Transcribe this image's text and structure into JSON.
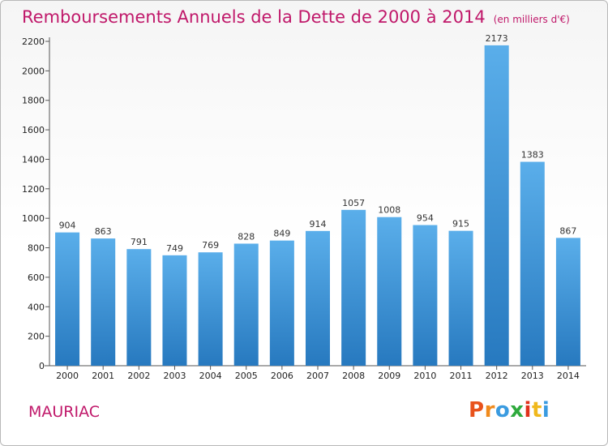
{
  "header": {
    "title": "Remboursements Annuels de la Dette de 2000 à 2014",
    "unit": "(en milliers d'€)"
  },
  "footer": {
    "commune": "MAURIAC",
    "logo": [
      "P",
      "r",
      "o",
      "x",
      "i",
      "t",
      "i"
    ]
  },
  "colors": {
    "title": "#c0186a",
    "bar_top": "#5aaeea",
    "bar_bottom": "#2779bf",
    "logo": [
      "#e8521c",
      "#f08a1c",
      "#3a9be0",
      "#2faa3d",
      "#e0321c",
      "#f0b81c",
      "#3a9be0"
    ]
  },
  "chart_data": {
    "type": "bar",
    "title": "Remboursements Annuels de la Dette de 2000 à 2014",
    "subtitle": "(en milliers d'€)",
    "xlabel": "",
    "ylabel": "",
    "categories": [
      "2000",
      "2001",
      "2002",
      "2003",
      "2004",
      "2005",
      "2006",
      "2007",
      "2008",
      "2009",
      "2010",
      "2011",
      "2012",
      "2013",
      "2014"
    ],
    "values": [
      904,
      863,
      791,
      749,
      769,
      828,
      849,
      914,
      1057,
      1008,
      954,
      915,
      2173,
      1383,
      867
    ],
    "value_labels": [
      "904",
      "863",
      "791",
      "749",
      "769",
      "828",
      "849",
      "914",
      "1057",
      "1008",
      "954",
      "915",
      "2173",
      "1383",
      "867"
    ],
    "ylim": [
      0,
      2200
    ],
    "yticks": [
      0,
      200,
      400,
      600,
      800,
      1000,
      1200,
      1400,
      1600,
      1800,
      2000,
      2200
    ],
    "ytick_labels": [
      "0",
      "200",
      "400",
      "600",
      "800",
      "1000",
      "1200",
      "1400",
      "1600",
      "1800",
      "2000",
      "2200"
    ],
    "grid": false,
    "legend": "none"
  }
}
